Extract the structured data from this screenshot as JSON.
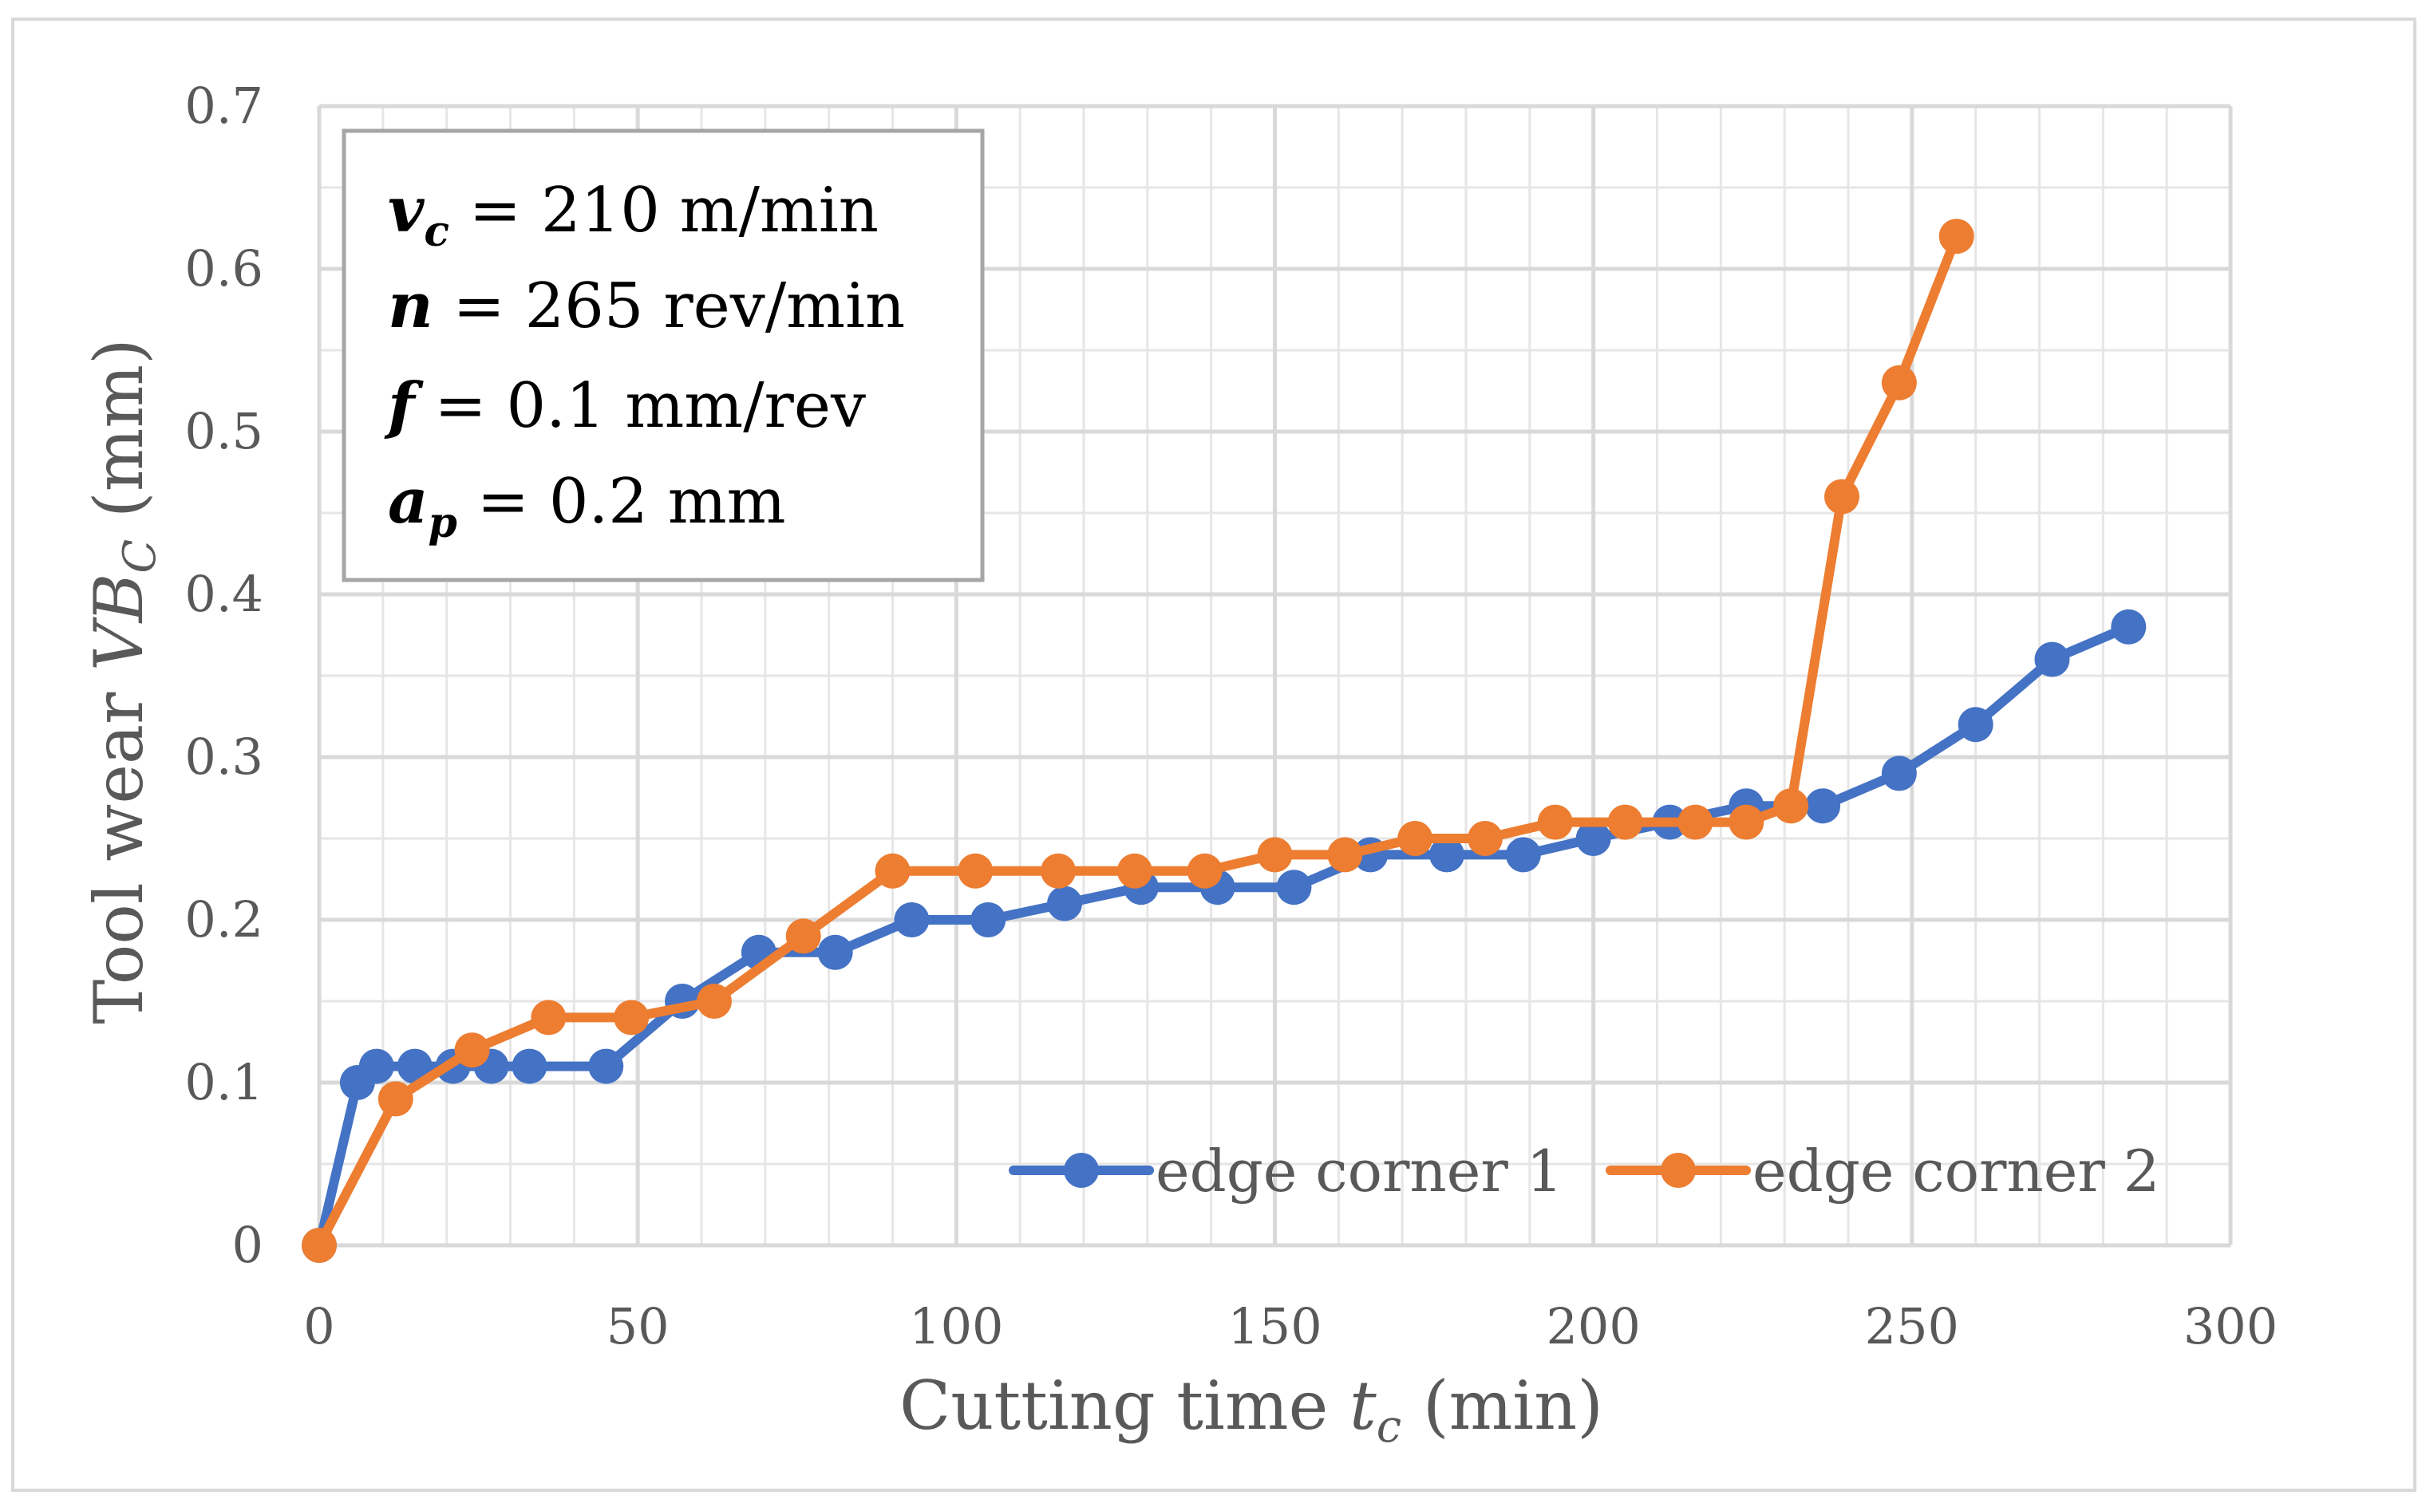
{
  "chart_data": {
    "type": "line",
    "title": "",
    "xlabel": {
      "main": "Cutting time ",
      "sym": "t",
      "sub": "c",
      "unit": " (min)"
    },
    "ylabel": {
      "main": "Tool wear ",
      "sym": "VB",
      "sub": "C",
      "unit": " (mm)"
    },
    "xlim": [
      0,
      300
    ],
    "ylim": [
      0,
      0.7
    ],
    "x_ticks": [
      0,
      50,
      100,
      150,
      200,
      250,
      300
    ],
    "y_ticks": [
      0,
      0.1,
      0.2,
      0.3,
      0.4,
      0.5,
      0.6,
      0.7
    ],
    "x_tick_labels": [
      "0",
      "50",
      "100",
      "150",
      "200",
      "250",
      "300"
    ],
    "y_tick_labels": [
      "0",
      "0.1",
      "0.2",
      "0.3",
      "0.4",
      "0.5",
      "0.6",
      "0.7"
    ],
    "grid": true,
    "legend_position": "bottom-right",
    "series": [
      {
        "name": "edge corner 1",
        "color": "#4472C4",
        "points": [
          [
            0,
            0
          ],
          [
            6,
            0.1
          ],
          [
            9,
            0.11
          ],
          [
            15,
            0.11
          ],
          [
            21,
            0.11
          ],
          [
            27,
            0.11
          ],
          [
            33,
            0.11
          ],
          [
            45,
            0.11
          ],
          [
            57,
            0.15
          ],
          [
            69,
            0.18
          ],
          [
            81,
            0.18
          ],
          [
            93,
            0.2
          ],
          [
            105,
            0.2
          ],
          [
            117,
            0.21
          ],
          [
            129,
            0.22
          ],
          [
            141,
            0.22
          ],
          [
            153,
            0.22
          ],
          [
            165,
            0.24
          ],
          [
            177,
            0.24
          ],
          [
            189,
            0.24
          ],
          [
            200,
            0.25
          ],
          [
            212,
            0.26
          ],
          [
            224,
            0.27
          ],
          [
            236,
            0.27
          ],
          [
            248,
            0.29
          ],
          [
            260,
            0.32
          ],
          [
            272,
            0.36
          ],
          [
            284,
            0.38
          ]
        ]
      },
      {
        "name": "edge corner 2",
        "color": "#ED7D31",
        "points": [
          [
            0,
            0
          ],
          [
            12,
            0.09
          ],
          [
            24,
            0.12
          ],
          [
            36,
            0.14
          ],
          [
            49,
            0.14
          ],
          [
            62,
            0.15
          ],
          [
            76,
            0.19
          ],
          [
            90,
            0.23
          ],
          [
            103,
            0.23
          ],
          [
            116,
            0.23
          ],
          [
            128,
            0.23
          ],
          [
            139,
            0.23
          ],
          [
            150,
            0.24
          ],
          [
            161,
            0.24
          ],
          [
            172,
            0.25
          ],
          [
            183,
            0.25
          ],
          [
            194,
            0.26
          ],
          [
            205,
            0.26
          ],
          [
            216,
            0.26
          ],
          [
            224,
            0.26
          ],
          [
            231,
            0.27
          ],
          [
            239,
            0.46
          ],
          [
            248,
            0.53
          ],
          [
            257,
            0.62
          ]
        ]
      }
    ]
  },
  "parameters": [
    {
      "sym": "v",
      "sub": "c",
      "text": " = 210 m/min"
    },
    {
      "sym": "n",
      "sub": "",
      "text": " = 265 rev/min"
    },
    {
      "sym": "f",
      "sub": "",
      "text": " = 0.1 mm/rev"
    },
    {
      "sym": "a",
      "sub": "p",
      "text": " = 0.2 mm"
    }
  ]
}
